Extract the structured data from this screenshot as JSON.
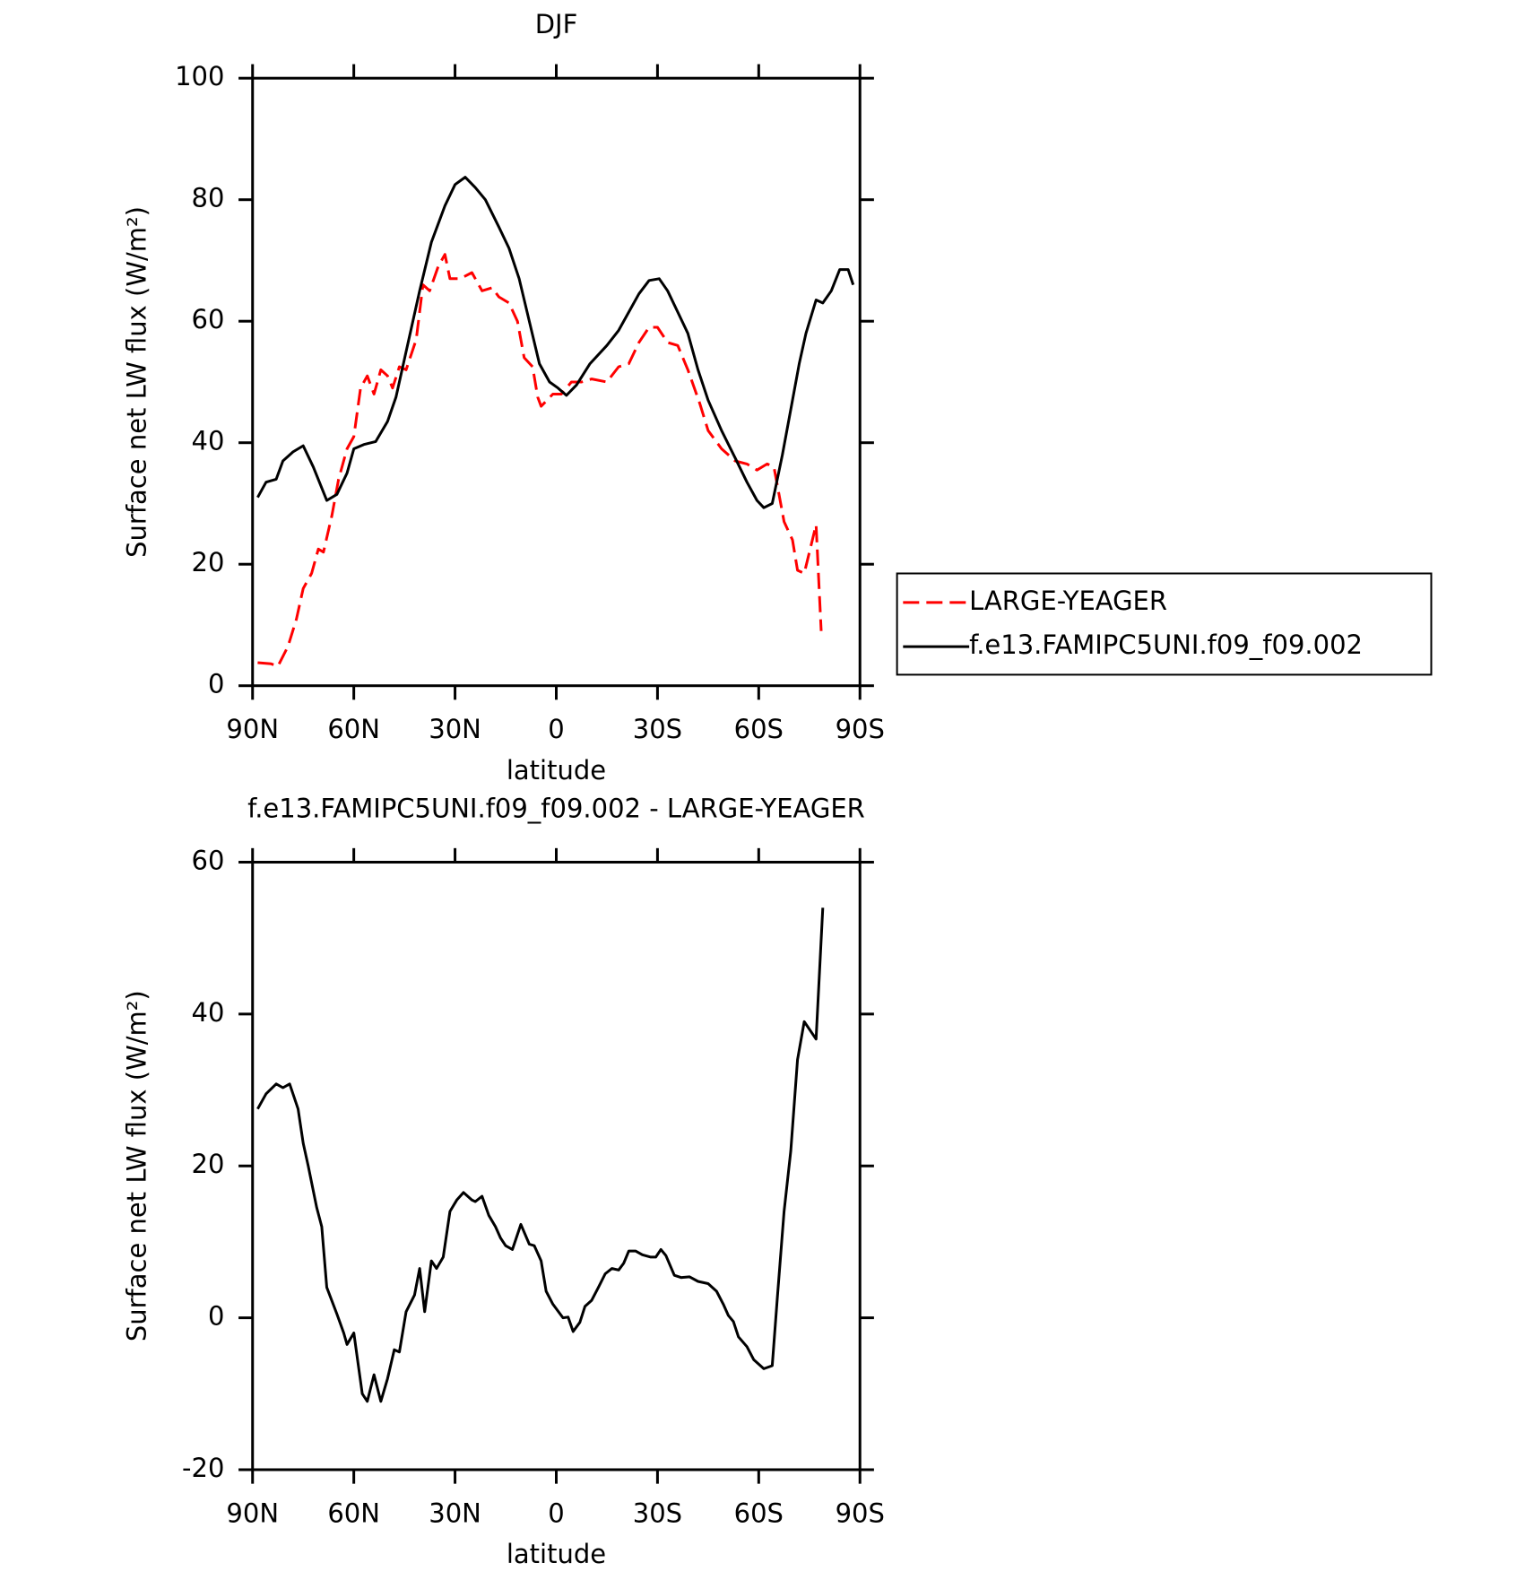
{
  "chart_data": [
    {
      "type": "line",
      "title": "DJF",
      "xlabel": "latitude",
      "ylabel": "Surface net LW flux (W/m²)",
      "xlim": [
        90,
        -90
      ],
      "xticks": [
        {
          "value": 90,
          "label": "90N"
        },
        {
          "value": 60,
          "label": "60N"
        },
        {
          "value": 30,
          "label": "30N"
        },
        0,
        {
          "value": -30,
          "label": "30S"
        },
        {
          "value": -60,
          "label": "60S"
        },
        {
          "value": -90,
          "label": "90S"
        }
      ],
      "ylim": [
        0,
        100
      ],
      "yticks": [
        0,
        20,
        40,
        60,
        80,
        100
      ],
      "legend": "right",
      "series": [
        {
          "name": "LARGE-YEAGER",
          "color": "#ff0000",
          "dash": true,
          "x": [
            88.5,
            84.5,
            82.5,
            79.5,
            77,
            75,
            72.5,
            70.5,
            69,
            66.5,
            64.5,
            62,
            60,
            58,
            56,
            54,
            52,
            50,
            48.5,
            46.5,
            44.5,
            41.5,
            39.5,
            37.5,
            35,
            33,
            31.5,
            28.5,
            25,
            22,
            19,
            17,
            14,
            11.5,
            9.5,
            7,
            5.5,
            4.5,
            1,
            -1.5,
            -4.5,
            -7.5,
            -10.5,
            -15,
            -18.5,
            -21.5,
            -24.5,
            -27.5,
            -30,
            -33,
            -36,
            -39,
            -42.5,
            -45,
            -49,
            -53,
            -56.5,
            -59.5,
            -62.5,
            -64.5,
            -67.5,
            -70,
            -71.5,
            -73.5,
            -77,
            -78.5
          ],
          "values": [
            3.8,
            3.6,
            3.2,
            6.5,
            11,
            16,
            18.5,
            22.5,
            22,
            28,
            34,
            39,
            41,
            49,
            51,
            48,
            52,
            51,
            49,
            52.5,
            52,
            57,
            66,
            65,
            69,
            71,
            67,
            67,
            68,
            65,
            65.5,
            64,
            63,
            60,
            54,
            52.5,
            47.5,
            46,
            48,
            48,
            50,
            50,
            50.5,
            50,
            52.5,
            53,
            56.5,
            59,
            59,
            56.5,
            56,
            52,
            46.5,
            42,
            39,
            37,
            36.5,
            35.5,
            36.5,
            36,
            27,
            24,
            19,
            18.5,
            26.5,
            9
          ]
        },
        {
          "name": "f.e13.FAMIPC5UNI.f09_f09.002",
          "color": "#000000",
          "dash": false,
          "x": [
            88.5,
            86,
            83,
            81,
            78,
            75,
            72,
            68,
            65,
            62,
            60,
            57,
            53.5,
            50,
            47.5,
            44.5,
            40.5,
            37,
            33,
            30,
            27,
            24,
            21,
            17,
            14,
            11,
            8,
            5,
            2,
            -0.5,
            -3,
            -6,
            -10,
            -15,
            -18.5,
            -21.5,
            -24.5,
            -27.5,
            -30.5,
            -33,
            -36,
            -39,
            -42,
            -45,
            -49,
            -53,
            -56.5,
            -59.5,
            -61.5,
            -64,
            -67,
            -70,
            -72,
            -74,
            -77,
            -79,
            -81.5,
            -84,
            -86.5,
            -88
          ],
          "values": [
            31,
            33.5,
            34,
            37,
            38.5,
            39.5,
            36,
            30.5,
            31.5,
            35,
            39,
            39.7,
            40.2,
            43.5,
            47.5,
            55,
            65,
            73,
            79,
            82.5,
            83.7,
            82,
            80,
            75.5,
            72,
            67,
            60,
            53,
            50,
            49,
            47.8,
            49.5,
            53,
            56,
            58.5,
            61.5,
            64.5,
            66.7,
            67,
            65,
            61.5,
            58,
            52,
            47,
            42,
            37.5,
            33.5,
            30.5,
            29.3,
            30,
            38,
            47,
            53,
            58,
            63.5,
            63,
            65,
            68.5,
            68.5,
            66
          ]
        }
      ]
    },
    {
      "type": "line",
      "title": "f.e13.FAMIPC5UNI.f09_f09.002 - LARGE-YEAGER",
      "xlabel": "latitude",
      "ylabel": "Surface net LW flux (W/m²)",
      "xlim": [
        90,
        -90
      ],
      "xticks": [
        {
          "value": 90,
          "label": "90N"
        },
        {
          "value": 60,
          "label": "60N"
        },
        {
          "value": 30,
          "label": "30N"
        },
        0,
        {
          "value": -30,
          "label": "30S"
        },
        {
          "value": -60,
          "label": "60S"
        },
        {
          "value": -90,
          "label": "90S"
        }
      ],
      "ylim": [
        -20,
        60
      ],
      "yticks": [
        -20,
        0,
        20,
        40,
        60
      ],
      "series": [
        {
          "color": "#000000",
          "dash": false,
          "x": [
            88.5,
            86,
            83,
            81,
            79,
            76.5,
            75,
            73.5,
            71,
            69.5,
            68,
            65,
            63,
            62,
            60,
            57.5,
            56,
            54,
            52,
            50,
            48,
            46.5,
            44.5,
            42,
            40.5,
            39,
            37,
            35.5,
            33.5,
            31.5,
            29.5,
            27.5,
            25,
            24,
            22,
            20,
            18,
            16.5,
            15,
            13,
            10.5,
            8,
            6.5,
            4.5,
            3,
            1,
            -2,
            -3.5,
            -5,
            -7,
            -8.5,
            -10.5,
            -12.5,
            -14.5,
            -16.5,
            -18.5,
            -20,
            -21.5,
            -23.5,
            -25.5,
            -28,
            -29.5,
            -31,
            -32.5,
            -35,
            -37,
            -39.5,
            -42,
            -45,
            -47.5,
            -49.5,
            -51,
            -52.5,
            -54,
            -56.5,
            -58.5,
            -61.5,
            -64,
            -65.5,
            -67.5,
            -69.5,
            -71.5,
            -73.5,
            -77,
            -79
          ],
          "values": [
            27.5,
            29.5,
            30.8,
            30.3,
            30.8,
            27.5,
            23,
            20,
            14.5,
            12,
            4,
            0.5,
            -2,
            -3.5,
            -2,
            -10,
            -11,
            -7.5,
            -11,
            -8,
            -4.2,
            -4.5,
            0.8,
            3,
            6.5,
            0.8,
            7.5,
            6.5,
            8,
            14,
            15.5,
            16.5,
            15.5,
            15.3,
            16,
            13.5,
            12,
            10.5,
            9.5,
            9,
            12.3,
            9.7,
            9.5,
            7.5,
            3.5,
            1.8,
            0,
            0.1,
            -1.8,
            -0.6,
            1.5,
            2.3,
            4,
            5.8,
            6.5,
            6.3,
            7.2,
            8.8,
            8.8,
            8.3,
            8,
            8,
            9,
            8.2,
            5.6,
            5.3,
            5.4,
            4.8,
            4.5,
            3.5,
            1.8,
            0.3,
            -0.5,
            -2.5,
            -3.8,
            -5.5,
            -6.7,
            -6.3,
            2.5,
            14,
            22,
            34,
            39,
            36.7,
            54
          ]
        }
      ]
    }
  ]
}
